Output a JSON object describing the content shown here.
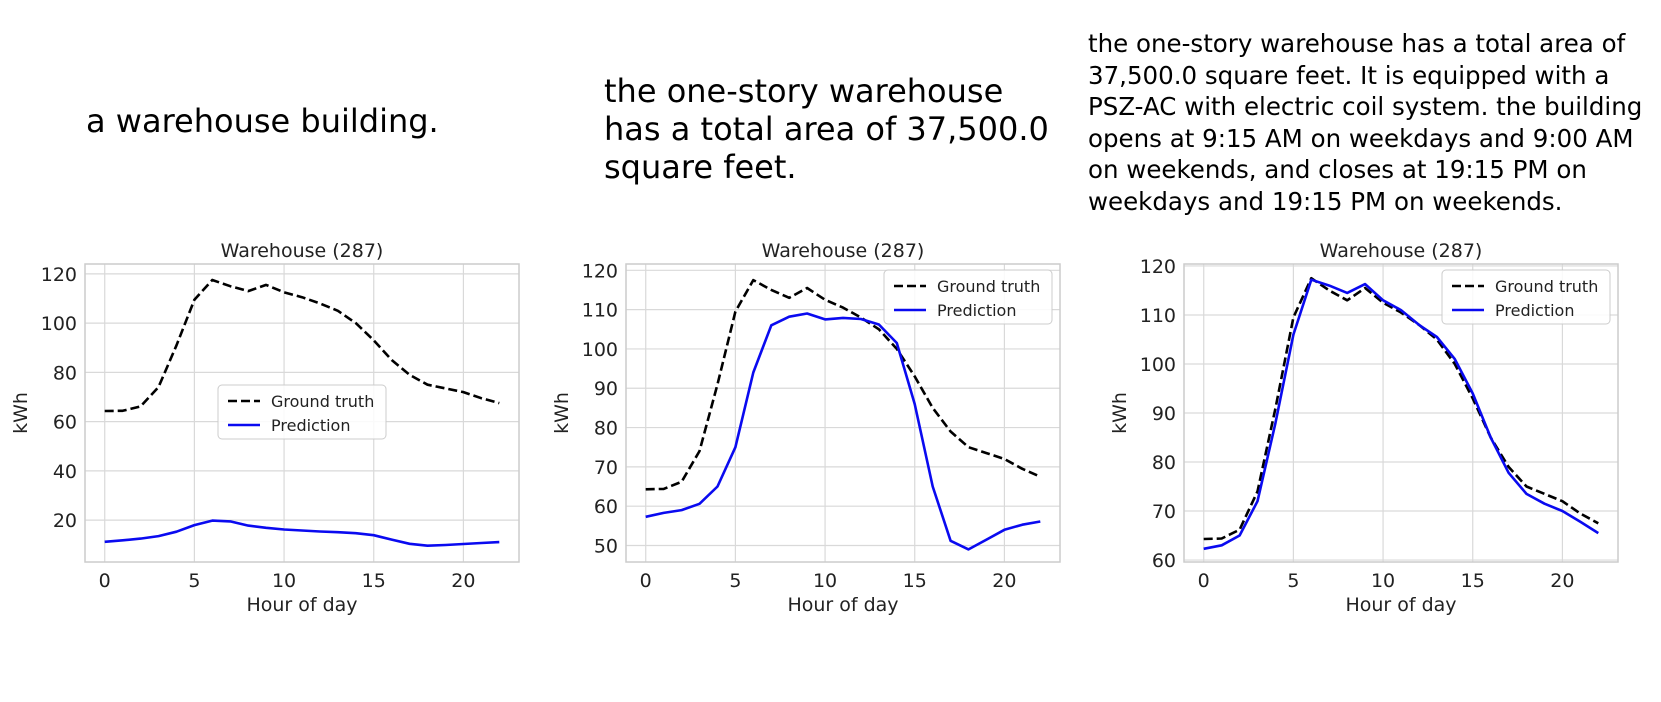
{
  "captions": [
    "a warehouse building.",
    "the one-story warehouse\nhas a total area of 37,500.0\nsquare feet.",
    "the one-story warehouse has a total area of\n37,500.0 square feet. It is equipped with a\nPSZ-AC with electric coil system. the building\nopens at 9:15 AM on weekdays and 9:00 AM\non weekends, and closes at 19:15 PM on\nweekdays and 19:15 PM on weekends."
  ],
  "colors": {
    "ground_truth": "#000000",
    "prediction": "#0a0af0",
    "grid": "#d9d9d9",
    "frame": "#cccccc"
  },
  "chart_data": [
    {
      "type": "line",
      "title": "Warehouse (287)",
      "xlabel": "Hour of day",
      "ylabel": "kWh",
      "xlim": [
        -1.1,
        23.1
      ],
      "ylim": [
        3,
        124
      ],
      "xticks": [
        0,
        5,
        10,
        15,
        20
      ],
      "yticks": [
        20,
        40,
        60,
        80,
        100,
        120
      ],
      "grid": true,
      "legend_position": "center-right",
      "x": [
        0,
        1,
        2,
        3,
        4,
        5,
        6,
        7,
        8,
        9,
        10,
        11,
        12,
        13,
        14,
        15,
        16,
        17,
        18,
        19,
        20,
        21,
        22
      ],
      "series": [
        {
          "name": "Ground truth",
          "style": "dashed",
          "color": "#000000",
          "values": [
            64.3,
            64.4,
            66.2,
            74,
            91,
            109.5,
            117.5,
            115,
            113,
            115.5,
            112.5,
            110.5,
            108,
            105,
            100,
            93,
            85,
            79,
            75,
            73.5,
            72,
            69.5,
            67.5
          ]
        },
        {
          "name": "Prediction",
          "style": "solid",
          "color": "#0a0af0",
          "values": [
            11.2,
            11.8,
            12.5,
            13.5,
            15.3,
            18,
            19.8,
            19.5,
            17.8,
            16.9,
            16.2,
            15.8,
            15.4,
            15.1,
            14.7,
            13.9,
            12.1,
            10.4,
            9.6,
            9.9,
            10.3,
            10.7,
            11.1
          ]
        }
      ]
    },
    {
      "type": "line",
      "title": "Warehouse (287)",
      "xlabel": "Hour of day",
      "ylabel": "kWh",
      "xlim": [
        -1.1,
        23.1
      ],
      "ylim": [
        45.8,
        121.6
      ],
      "xticks": [
        0,
        5,
        10,
        15,
        20
      ],
      "yticks": [
        50,
        60,
        70,
        80,
        90,
        100,
        110,
        120
      ],
      "grid": true,
      "legend_position": "top-right",
      "x": [
        0,
        1,
        2,
        3,
        4,
        5,
        6,
        7,
        8,
        9,
        10,
        11,
        12,
        13,
        14,
        15,
        16,
        17,
        18,
        19,
        20,
        21,
        22
      ],
      "series": [
        {
          "name": "Ground truth",
          "style": "dashed",
          "color": "#000000",
          "values": [
            64.3,
            64.4,
            66.2,
            74,
            91,
            109.5,
            117.5,
            115,
            113,
            115.5,
            112.5,
            110.5,
            108,
            105,
            100,
            93,
            85,
            79,
            75,
            73.5,
            72,
            69.5,
            67.5
          ]
        },
        {
          "name": "Prediction",
          "style": "solid",
          "color": "#0a0af0",
          "values": [
            57.3,
            58.3,
            59,
            60.6,
            65,
            75,
            94,
            106,
            108.2,
            109,
            107.5,
            107.9,
            107.6,
            106.2,
            101.5,
            86,
            65,
            51.2,
            49,
            51.5,
            54,
            55.3,
            56.1
          ]
        }
      ]
    },
    {
      "type": "line",
      "title": "Warehouse (287)",
      "xlabel": "Hour of day",
      "ylabel": "kWh",
      "xlim": [
        -1.1,
        23.1
      ],
      "ylim": [
        59.6,
        120.4
      ],
      "xticks": [
        0,
        5,
        10,
        15,
        20
      ],
      "yticks": [
        60,
        70,
        80,
        90,
        100,
        110,
        120
      ],
      "grid": true,
      "legend_position": "top-right",
      "x": [
        0,
        1,
        2,
        3,
        4,
        5,
        6,
        7,
        8,
        9,
        10,
        11,
        12,
        13,
        14,
        15,
        16,
        17,
        18,
        19,
        20,
        21,
        22
      ],
      "series": [
        {
          "name": "Ground truth",
          "style": "dashed",
          "color": "#000000",
          "values": [
            64.3,
            64.4,
            66.2,
            74,
            91,
            109.5,
            117.5,
            115,
            113,
            115.5,
            112.5,
            110.5,
            108,
            105,
            100,
            93,
            85,
            79,
            75,
            73.5,
            72,
            69.5,
            67.5
          ]
        },
        {
          "name": "Prediction",
          "style": "solid",
          "color": "#0a0af0",
          "values": [
            62.3,
            63,
            65,
            72,
            88,
            106,
            117.2,
            116,
            114.5,
            116.3,
            113,
            111,
            108,
            105.5,
            101,
            94,
            85,
            77.8,
            73.5,
            71.5,
            70,
            67.8,
            65.5
          ]
        }
      ]
    }
  ]
}
